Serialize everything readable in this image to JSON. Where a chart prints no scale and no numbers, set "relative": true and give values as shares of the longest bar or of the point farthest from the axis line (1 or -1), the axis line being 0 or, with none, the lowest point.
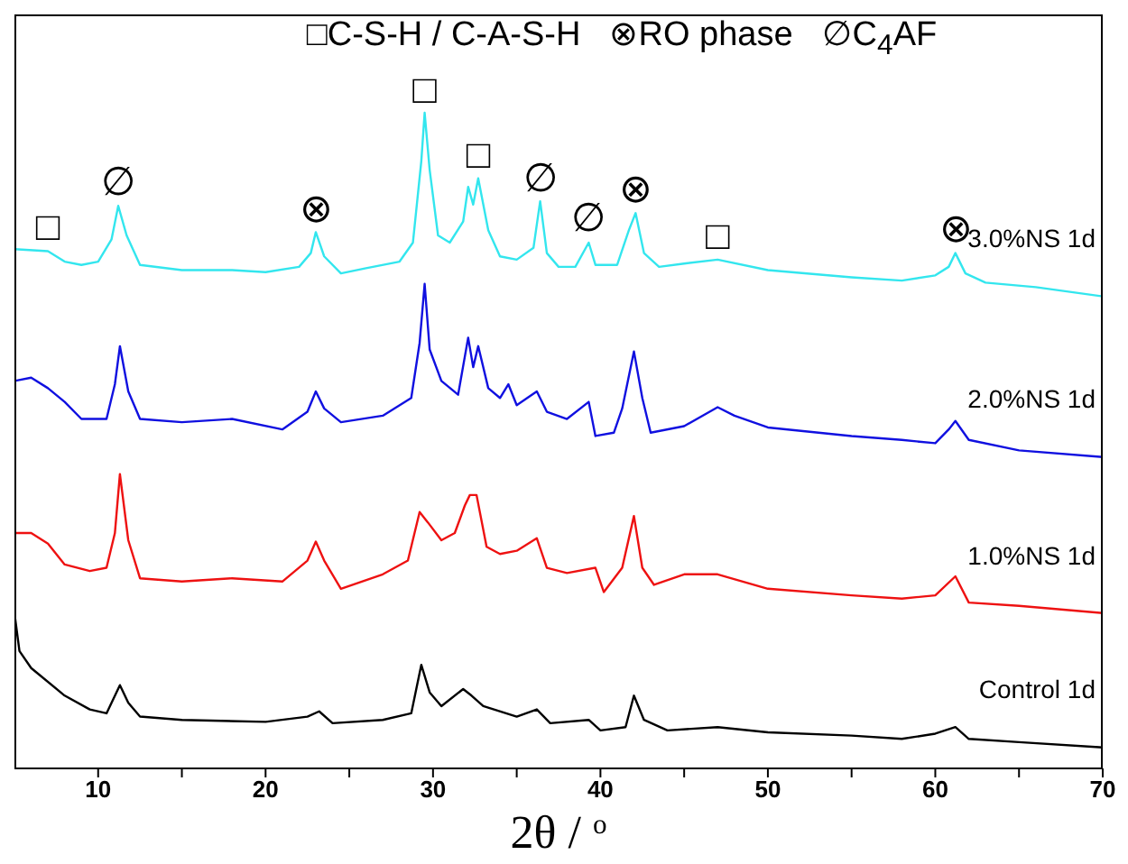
{
  "chart_data": {
    "type": "line",
    "relative": true,
    "xlabel": "2θ / $^{o}$",
    "xlim": [
      5,
      70
    ],
    "xticks": [
      10,
      {
        "value": 15,
        "label": null
      },
      20,
      {
        "value": 25,
        "label": null
      },
      30,
      {
        "value": 35,
        "label": null
      },
      40,
      {
        "value": 45,
        "label": null
      },
      50,
      {
        "value": 55,
        "label": null
      },
      60,
      {
        "value": 65,
        "label": null
      },
      70
    ],
    "legend": false,
    "annotations": [
      "□C-S-H / C-A-S-H",
      "⊗RO phase",
      "∅C$_{4}$AF",
      {
        "text": "□",
        "x": 7,
        "y": 0.789
      },
      {
        "text": "∅",
        "x": 11.2,
        "y": 0.858
      },
      {
        "text": "⊗",
        "x": 23,
        "y": 0.818
      },
      {
        "text": "□",
        "x": 29.5,
        "y": 1
      },
      {
        "text": "□",
        "x": 32.7,
        "y": 0.9
      },
      {
        "text": "∅",
        "x": 36.4,
        "y": 0.865
      },
      {
        "text": "∅",
        "x": 39.3,
        "y": 0.802
      },
      {
        "text": "⊗",
        "x": 42.1,
        "y": 0.847
      },
      {
        "text": "□",
        "x": 47,
        "y": 0.776
      },
      {
        "text": "⊗",
        "x": 61.2,
        "y": 0.786
      }
    ],
    "series": [
      {
        "name": "3.0%NS 1d",
        "color": "#33e6ee",
        "x": [
          5,
          7,
          8,
          9,
          10,
          10.8,
          11.2,
          11.7,
          12.5,
          15,
          18,
          20,
          22,
          22.7,
          23,
          23.5,
          24.5,
          26,
          28,
          28.8,
          29.3,
          29.5,
          29.8,
          30.3,
          31,
          31.8,
          32.1,
          32.4,
          32.7,
          33.3,
          34,
          35,
          36,
          36.4,
          36.8,
          37.5,
          38.5,
          39.3,
          39.7,
          41,
          41.7,
          42.1,
          42.6,
          43.5,
          45,
          47,
          50,
          55,
          58,
          60,
          60.8,
          61.2,
          61.8,
          63,
          66,
          70
        ],
        "values": [
          0.792,
          0.789,
          0.773,
          0.768,
          0.773,
          0.807,
          0.858,
          0.813,
          0.768,
          0.76,
          0.76,
          0.757,
          0.765,
          0.786,
          0.818,
          0.781,
          0.755,
          0.763,
          0.773,
          0.802,
          0.926,
          1,
          0.913,
          0.813,
          0.802,
          0.834,
          0.887,
          0.86,
          0.9,
          0.821,
          0.781,
          0.776,
          0.794,
          0.865,
          0.786,
          0.765,
          0.765,
          0.802,
          0.768,
          0.768,
          0.821,
          0.847,
          0.786,
          0.765,
          0.77,
          0.776,
          0.76,
          0.749,
          0.744,
          0.752,
          0.765,
          0.786,
          0.755,
          0.741,
          0.734,
          0.72
        ]
      },
      {
        "name": "2.0%NS 1d",
        "color": "#1010e0",
        "x": [
          5,
          6,
          7,
          8,
          9,
          10.5,
          11,
          11.3,
          11.8,
          12.5,
          15,
          18,
          21,
          22.5,
          23,
          23.5,
          24.5,
          27,
          28.7,
          29.2,
          29.5,
          29.8,
          30.5,
          31.5,
          32.1,
          32.4,
          32.7,
          33.3,
          34,
          34.5,
          35,
          36.2,
          36.8,
          38,
          39.3,
          39.7,
          40.8,
          41.3,
          42,
          42.5,
          43,
          45,
          47,
          48,
          50,
          55,
          58,
          60,
          60.8,
          61.2,
          62,
          65,
          70
        ],
        "values": [
          0.591,
          0.596,
          0.58,
          0.559,
          0.533,
          0.533,
          0.586,
          0.644,
          0.575,
          0.533,
          0.528,
          0.533,
          0.517,
          0.544,
          0.575,
          0.549,
          0.528,
          0.538,
          0.565,
          0.649,
          0.739,
          0.639,
          0.591,
          0.57,
          0.657,
          0.612,
          0.644,
          0.58,
          0.565,
          0.586,
          0.554,
          0.575,
          0.544,
          0.533,
          0.559,
          0.507,
          0.512,
          0.549,
          0.636,
          0.565,
          0.512,
          0.522,
          0.551,
          0.538,
          0.52,
          0.507,
          0.501,
          0.496,
          0.517,
          0.53,
          0.501,
          0.485,
          0.475
        ]
      },
      {
        "name": "1.0%NS 1d",
        "color": "#ee1111",
        "x": [
          5,
          6,
          7,
          8,
          9.5,
          10.5,
          11,
          11.3,
          11.8,
          12.5,
          15,
          18,
          21,
          22.5,
          23,
          23.5,
          24.5,
          27,
          28.5,
          29.2,
          29.7,
          30.5,
          31.3,
          31.9,
          32.2,
          32.6,
          33.2,
          34,
          35,
          36.2,
          36.8,
          38,
          39.7,
          40.2,
          41.3,
          42,
          42.5,
          43.2,
          45,
          47,
          50,
          55,
          58,
          60,
          61.2,
          62,
          65,
          70
        ],
        "values": [
          0.359,
          0.359,
          0.343,
          0.311,
          0.301,
          0.306,
          0.359,
          0.449,
          0.348,
          0.29,
          0.285,
          0.29,
          0.285,
          0.317,
          0.346,
          0.317,
          0.274,
          0.296,
          0.317,
          0.391,
          0.375,
          0.348,
          0.359,
          0.401,
          0.417,
          0.417,
          0.338,
          0.327,
          0.332,
          0.351,
          0.306,
          0.298,
          0.306,
          0.269,
          0.306,
          0.385,
          0.306,
          0.28,
          0.296,
          0.296,
          0.274,
          0.264,
          0.259,
          0.264,
          0.293,
          0.253,
          0.248,
          0.237
        ]
      },
      {
        "name": "Control 1d",
        "color": "#000000",
        "x": [
          5,
          5.3,
          6,
          8,
          9.5,
          10.5,
          11.3,
          11.8,
          12.5,
          15,
          20,
          22.5,
          23.2,
          24,
          27,
          28.7,
          29.3,
          29.8,
          30.5,
          31.8,
          32.3,
          33,
          35,
          36.2,
          37,
          39.3,
          40,
          41.5,
          42,
          42.6,
          44,
          47,
          50,
          55,
          58,
          60,
          61.2,
          62,
          65,
          70
        ],
        "values": [
          0.237,
          0.179,
          0.153,
          0.111,
          0.09,
          0.084,
          0.127,
          0.1,
          0.079,
          0.074,
          0.071,
          0.079,
          0.087,
          0.069,
          0.074,
          0.084,
          0.158,
          0.116,
          0.095,
          0.121,
          0.111,
          0.095,
          0.079,
          0.09,
          0.069,
          0.074,
          0.058,
          0.063,
          0.111,
          0.074,
          0.058,
          0.063,
          0.055,
          0.05,
          0.045,
          0.053,
          0.063,
          0.045,
          0.04,
          0.032
        ]
      }
    ]
  }
}
